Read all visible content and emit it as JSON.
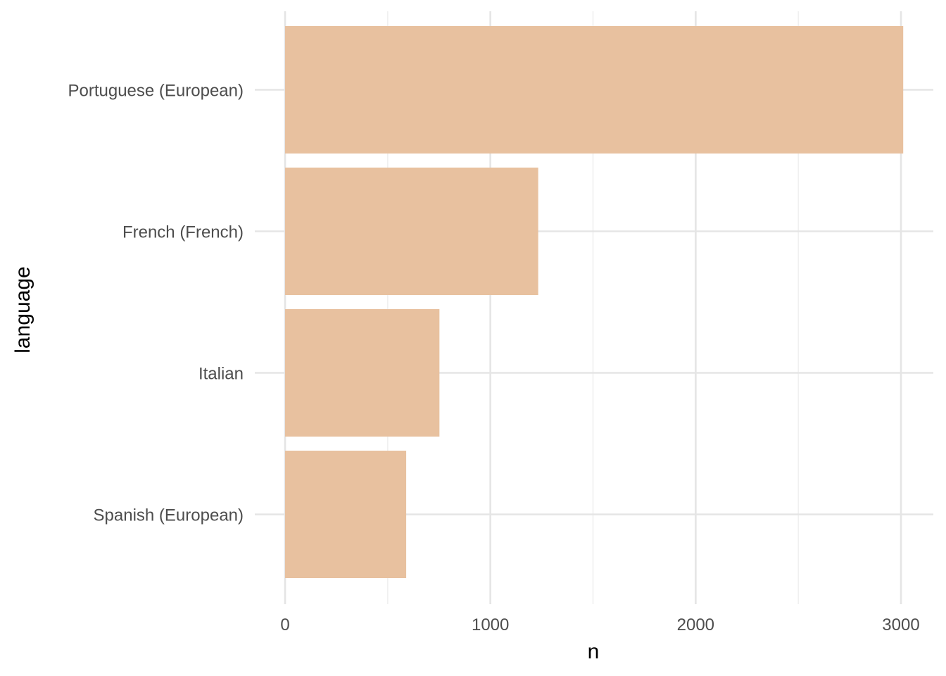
{
  "chart_data": {
    "type": "bar",
    "orientation": "horizontal",
    "categories": [
      "Portuguese (European)",
      "French (French)",
      "Italian",
      "Spanish (European)"
    ],
    "values": [
      3011,
      1233,
      752,
      590
    ],
    "xlabel": "n",
    "ylabel": "language",
    "xlim": [
      0,
      3000
    ],
    "x_ticks": [
      0,
      1000,
      2000,
      3000
    ],
    "x_tick_labels": [
      "0",
      "1000",
      "2000",
      "3000"
    ],
    "grid": true,
    "legend": "none",
    "bar_color": "#E8C19F"
  }
}
